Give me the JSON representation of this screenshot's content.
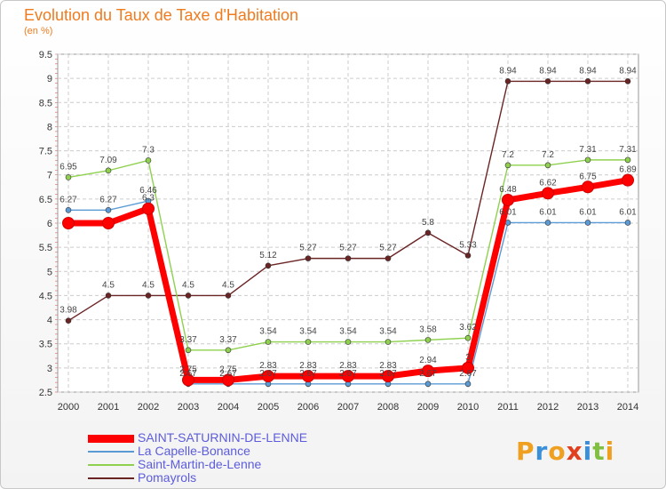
{
  "title": "Evolution du Taux de Taxe d'Habitation",
  "subtitle": "(en %)",
  "logo": {
    "text": "Proxiti",
    "colors": [
      "#f0a020",
      "#3a8fd8",
      "#f0a020",
      "#e04020",
      "#3a8fd8",
      "#80c040",
      "#f0a020"
    ]
  },
  "chart_data": {
    "type": "line",
    "title": "Evolution du Taux de Taxe d'Habitation",
    "ylabel": "(en %)",
    "xlabel": "",
    "ylim": [
      2.5,
      9.5
    ],
    "yticks": [
      "2.5",
      "3",
      "3.5",
      "4",
      "4.5",
      "5",
      "5.5",
      "6",
      "6.5",
      "7",
      "7.5",
      "8",
      "8.5",
      "9",
      "9.5"
    ],
    "categories": [
      "2000",
      "2001",
      "2002",
      "2003",
      "2004",
      "2005",
      "2006",
      "2007",
      "2008",
      "2009",
      "2010",
      "2011",
      "2012",
      "2013",
      "2014"
    ],
    "grid": true,
    "legend": "bottom-left",
    "series": [
      {
        "name": "SAINT-SATURNIN-DE-LENNE",
        "color": "#ff0000",
        "values": [
          6.0,
          6.0,
          6.3,
          2.75,
          2.75,
          2.83,
          2.83,
          2.83,
          2.83,
          2.94,
          3.0,
          6.48,
          6.62,
          6.75,
          6.89
        ],
        "labels": [
          "",
          "",
          "6.3",
          "2.75",
          "2.75",
          "2.83",
          "2.83",
          "2.83",
          "2.83",
          "2.94",
          "3",
          "6.48",
          "6.62",
          "6.75",
          "6.89"
        ]
      },
      {
        "name": "La Capelle-Bonance",
        "color": "#5b9bd5",
        "values": [
          6.27,
          6.27,
          6.46,
          2.67,
          2.67,
          2.67,
          2.67,
          2.67,
          2.67,
          2.67,
          2.67,
          6.01,
          6.01,
          6.01,
          6.01
        ],
        "labels": [
          "6.27",
          "6.27",
          "6.46",
          "2.67",
          "2.67",
          "2.67",
          "2.67",
          "2.67",
          "2.67",
          "2.67",
          "2.67",
          "6.01",
          "6.01",
          "6.01",
          "6.01"
        ]
      },
      {
        "name": "Saint-Martin-de-Lenne",
        "color": "#8fd14f",
        "values": [
          6.95,
          7.09,
          7.3,
          3.37,
          3.37,
          3.54,
          3.54,
          3.54,
          3.54,
          3.58,
          3.62,
          7.2,
          7.2,
          7.31,
          7.31
        ],
        "labels": [
          "6.95",
          "7.09",
          "7.3",
          "3.37",
          "3.37",
          "3.54",
          "3.54",
          "3.54",
          "3.54",
          "3.58",
          "3.62",
          "7.2",
          "7.2",
          "7.31",
          "7.31"
        ]
      },
      {
        "name": "Pomayrols",
        "color": "#6b2424",
        "values": [
          3.98,
          4.5,
          4.5,
          4.5,
          4.5,
          5.12,
          5.27,
          5.27,
          5.27,
          5.8,
          5.33,
          8.94,
          8.94,
          8.94,
          8.94
        ],
        "labels": [
          "3.98",
          "4.5",
          "4.5",
          "4.5",
          "4.5",
          "5.12",
          "5.27",
          "5.27",
          "5.27",
          "5.8",
          "5.33",
          "8.94",
          "8.94",
          "8.94",
          "8.94"
        ]
      }
    ]
  }
}
